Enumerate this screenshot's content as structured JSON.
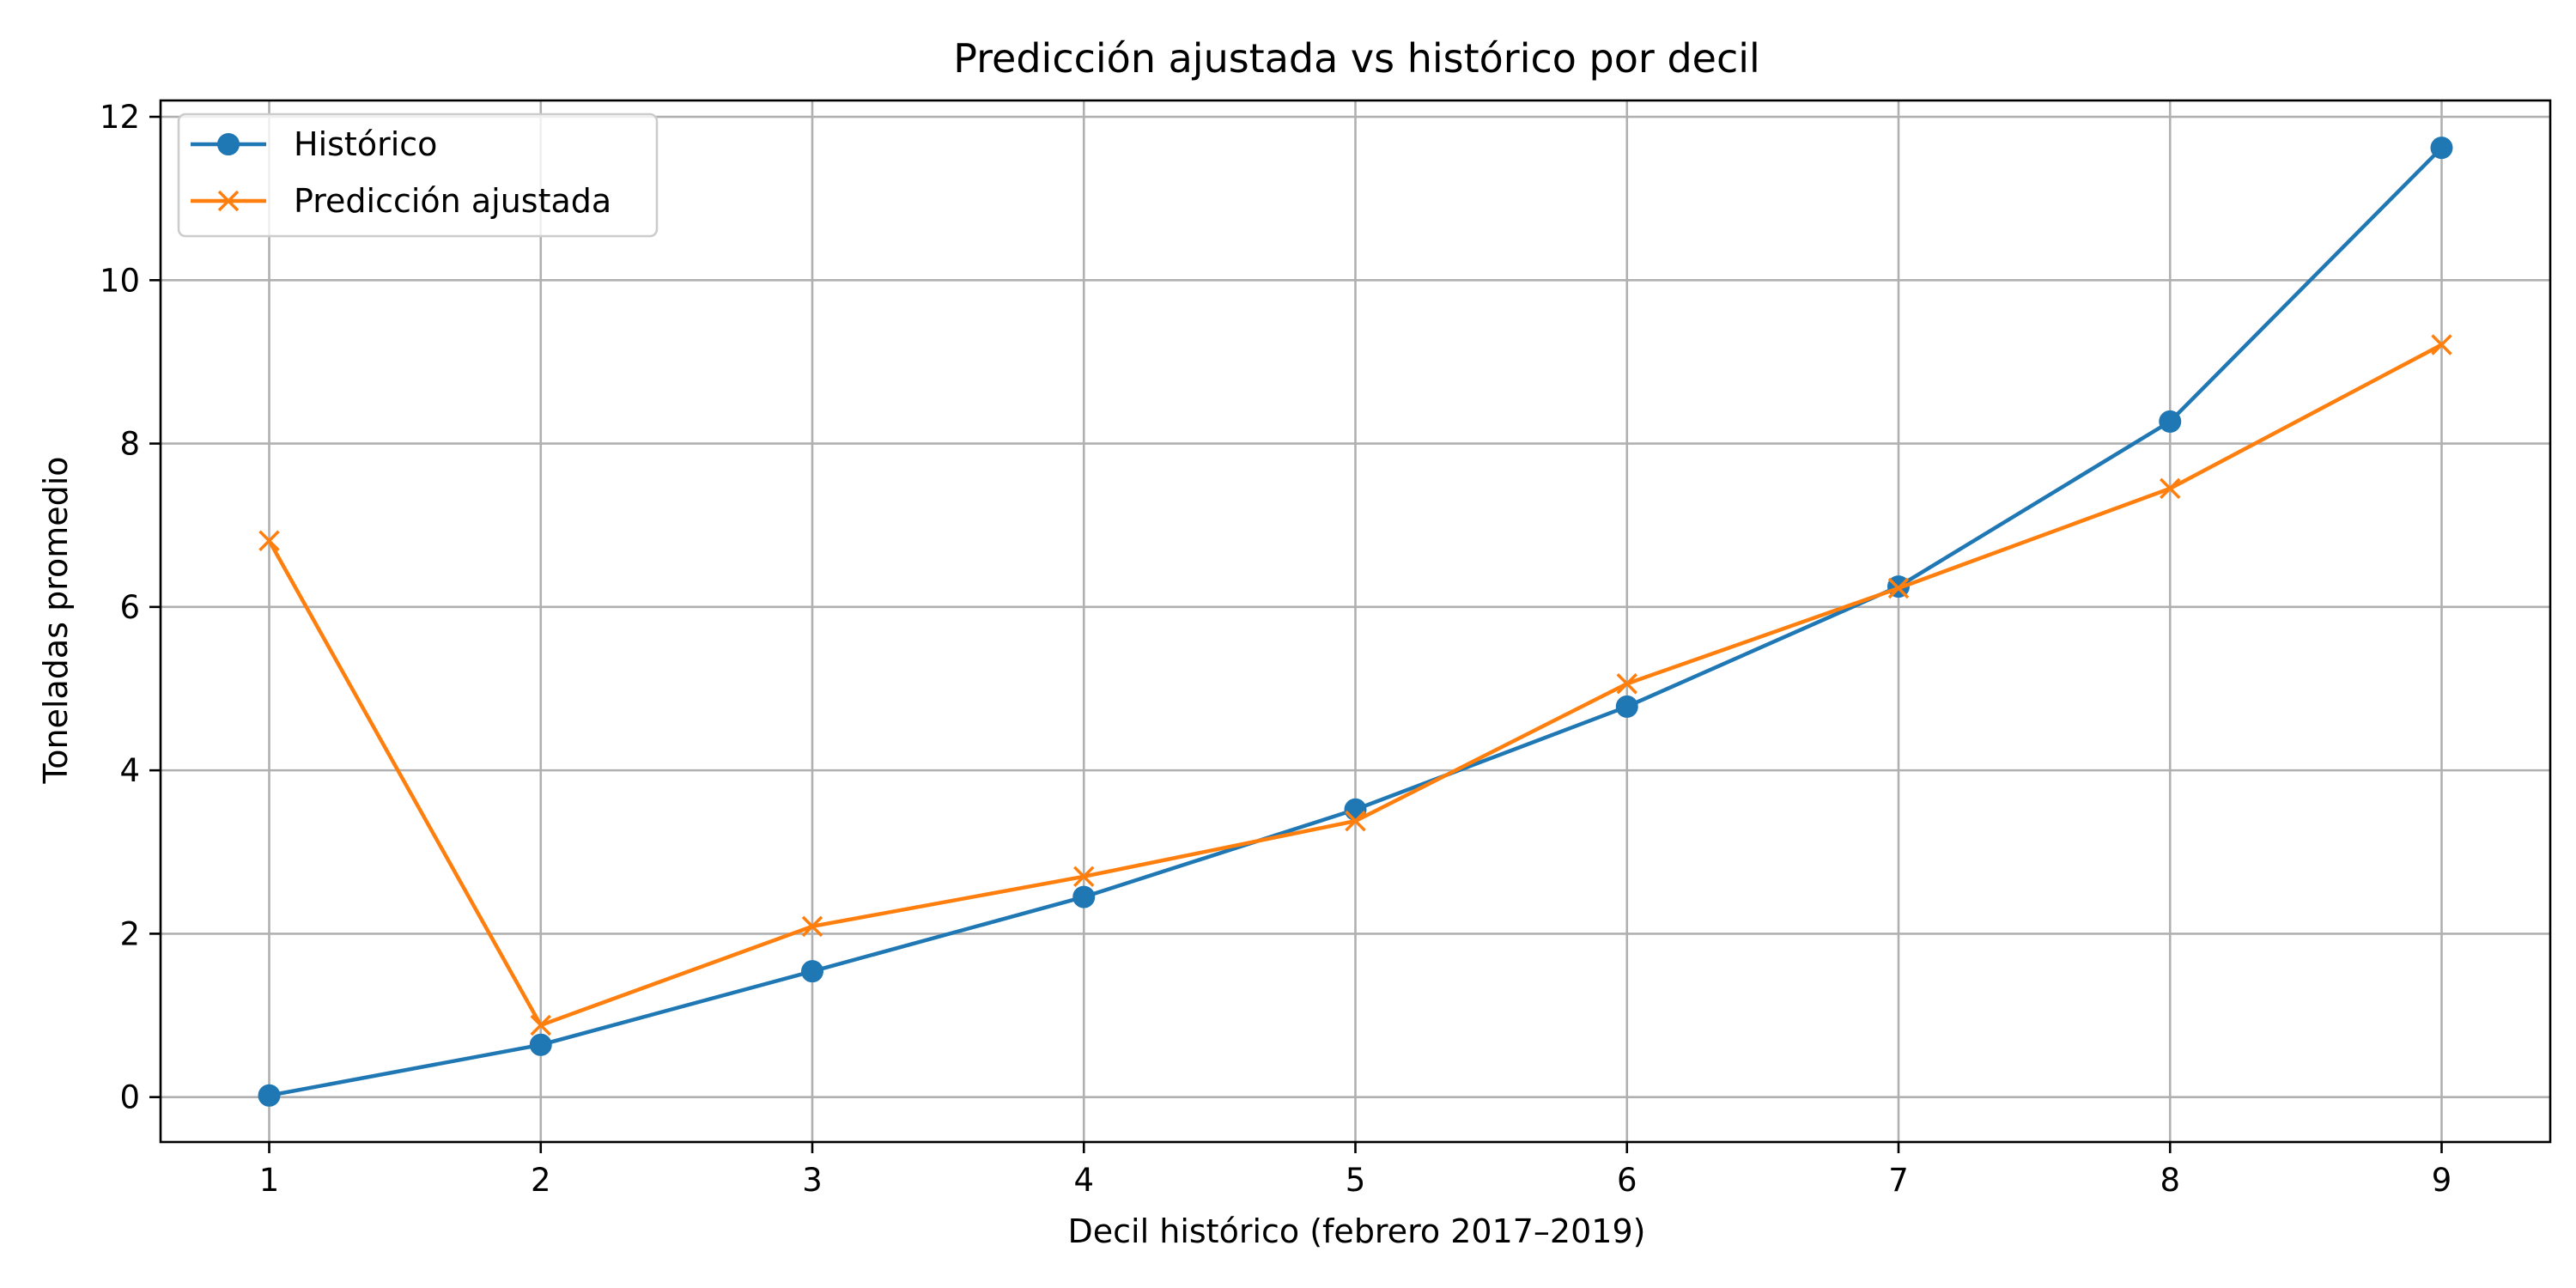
{
  "chart_data": {
    "type": "line",
    "title": "Predicción ajustada vs histórico por decil",
    "xlabel": "Decil histórico (febrero 2017–2019)",
    "ylabel": "Toneladas promedio",
    "x": [
      1,
      2,
      3,
      4,
      5,
      6,
      7,
      8,
      9
    ],
    "xlim": [
      0.6,
      9.4
    ],
    "ylim": [
      -0.55,
      12.2
    ],
    "xticks": [
      1,
      2,
      3,
      4,
      5,
      6,
      7,
      8,
      9
    ],
    "yticks": [
      0,
      2,
      4,
      6,
      8,
      10,
      12
    ],
    "grid": true,
    "legend_position": "top-left",
    "series": [
      {
        "name": "Histórico",
        "values": [
          0.02,
          0.64,
          1.54,
          2.45,
          3.52,
          4.78,
          6.25,
          8.27,
          11.62
        ],
        "color": "#1f77b4",
        "marker": "circle"
      },
      {
        "name": "Predicción ajustada",
        "values": [
          6.81,
          0.88,
          2.09,
          2.7,
          3.38,
          5.06,
          6.23,
          7.45,
          9.21
        ],
        "color": "#ff7f0e",
        "marker": "x"
      }
    ]
  }
}
